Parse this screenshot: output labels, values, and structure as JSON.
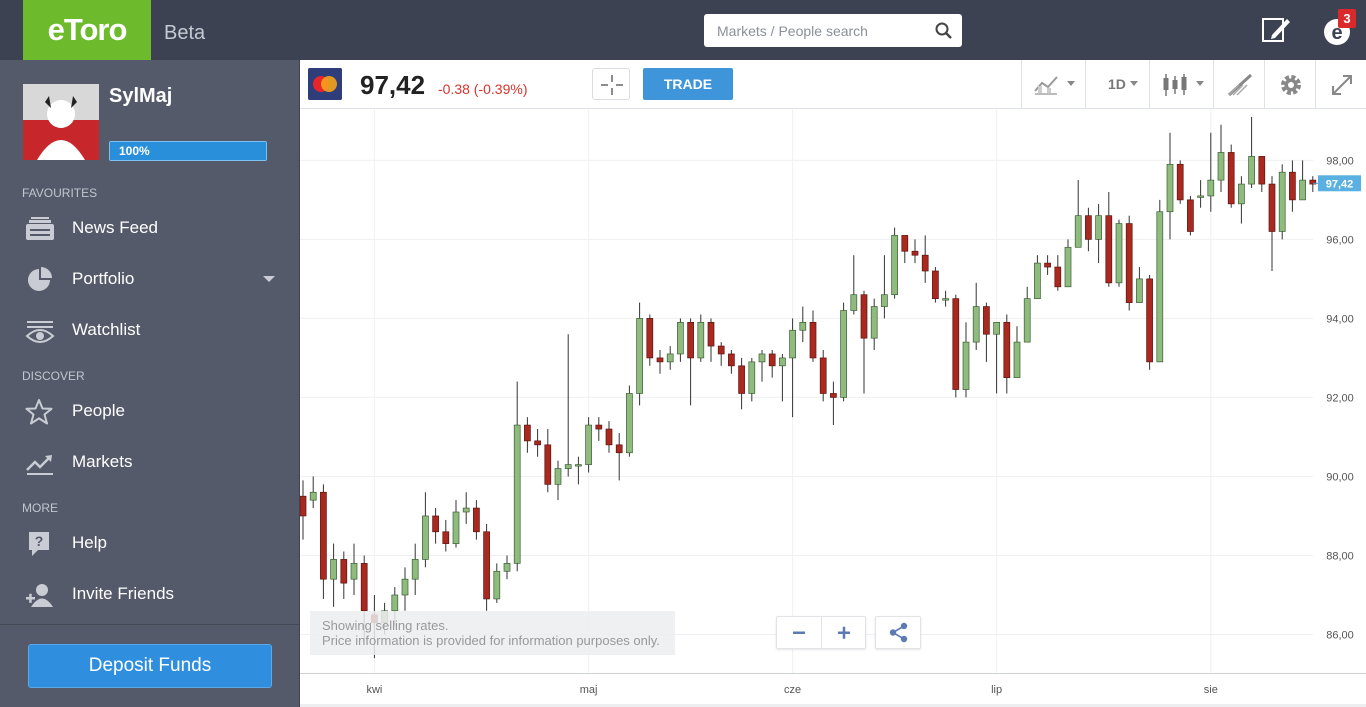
{
  "app": {
    "brand": "eToro",
    "beta_label": "Beta"
  },
  "search": {
    "placeholder": "Markets / People search"
  },
  "notifications": {
    "count": "3"
  },
  "colors": {
    "accent_green": "#6dbb2c",
    "topbar": "#3d4252",
    "sidebar": "#545a69",
    "bull": "#8fbc7e",
    "bear": "#a9281f",
    "blue": "#2f8fde"
  },
  "user": {
    "name": "SylMaj",
    "progress_label": "100%",
    "progress_value": 1.0
  },
  "sidebar": {
    "sections": [
      "Favourites",
      "Discover",
      "More"
    ],
    "items": [
      {
        "label": "News Feed",
        "icon": "news-feed-icon"
      },
      {
        "label": "Portfolio",
        "icon": "pie-chart-icon"
      },
      {
        "label": "Watchlist",
        "icon": "eye-icon"
      },
      {
        "label": "People",
        "icon": "star-icon"
      },
      {
        "label": "Markets",
        "icon": "trend-icon"
      },
      {
        "label": "Help",
        "icon": "help-icon"
      },
      {
        "label": "Invite Friends",
        "icon": "invite-friends-icon"
      }
    ],
    "deposit_label": "Deposit Funds"
  },
  "instrument": {
    "price": "97,42",
    "change": "-0.38 (-0.39%)",
    "trade_label": "TRADE",
    "timeframe": "1D"
  },
  "notice": {
    "line1": "Showing selling rates.",
    "line2": "Price information is provided for information purposes only."
  },
  "chart_data": {
    "type": "candlestick",
    "ylim": [
      85,
      99.3
    ],
    "y_ticks": [
      "86,00",
      "88,00",
      "90,00",
      "92,00",
      "94,00",
      "96,00",
      "98,00"
    ],
    "y_tick_values": [
      86,
      88,
      90,
      92,
      94,
      96,
      98
    ],
    "current_price": 97.42,
    "current_label": "97,42",
    "x_labels": [
      "kwi",
      "maj",
      "cze",
      "lip",
      "sie"
    ],
    "x_label_index": [
      7,
      28,
      48,
      68,
      89
    ],
    "candles": [
      [
        89.5,
        89.0,
        89.9,
        88.4
      ],
      [
        89.4,
        89.6,
        90.0,
        89.2
      ],
      [
        89.6,
        87.4,
        89.8,
        86.9
      ],
      [
        87.4,
        87.9,
        88.3,
        86.7
      ],
      [
        87.9,
        87.3,
        88.1,
        86.9
      ],
      [
        87.4,
        87.8,
        88.3,
        87.0
      ],
      [
        87.8,
        86.6,
        88.0,
        85.8
      ],
      [
        86.5,
        86.3,
        87.0,
        85.4
      ],
      [
        86.3,
        86.6,
        86.8,
        86.0
      ],
      [
        86.6,
        87.0,
        87.2,
        86.2
      ],
      [
        87.0,
        87.4,
        87.7,
        86.6
      ],
      [
        87.4,
        87.9,
        88.3,
        87.0
      ],
      [
        87.9,
        89.0,
        89.6,
        87.7
      ],
      [
        89.0,
        88.6,
        89.2,
        88.3
      ],
      [
        88.6,
        88.3,
        88.9,
        88.1
      ],
      [
        88.3,
        89.1,
        89.4,
        88.2
      ],
      [
        89.1,
        89.2,
        89.6,
        88.8
      ],
      [
        89.2,
        88.6,
        89.4,
        88.4
      ],
      [
        88.6,
        86.9,
        88.8,
        86.6
      ],
      [
        86.9,
        87.6,
        87.8,
        86.8
      ],
      [
        87.6,
        87.8,
        88.0,
        87.4
      ],
      [
        87.8,
        91.3,
        92.4,
        87.6
      ],
      [
        91.3,
        90.9,
        91.5,
        90.6
      ],
      [
        90.9,
        90.8,
        91.2,
        90.5
      ],
      [
        90.8,
        89.8,
        91.2,
        89.6
      ],
      [
        89.8,
        90.2,
        90.4,
        89.4
      ],
      [
        90.2,
        90.3,
        93.6,
        90.0
      ],
      [
        90.3,
        90.3,
        90.5,
        89.8
      ],
      [
        90.3,
        91.3,
        91.5,
        90.1
      ],
      [
        91.3,
        91.2,
        91.5,
        90.9
      ],
      [
        91.2,
        90.8,
        91.4,
        90.6
      ],
      [
        90.8,
        90.6,
        91.1,
        89.9
      ],
      [
        90.6,
        92.1,
        92.3,
        90.5
      ],
      [
        92.1,
        94.0,
        94.4,
        91.8
      ],
      [
        94.0,
        93.0,
        94.1,
        92.8
      ],
      [
        93.0,
        92.9,
        93.2,
        92.6
      ],
      [
        92.9,
        93.1,
        93.3,
        92.7
      ],
      [
        93.1,
        93.9,
        94.0,
        92.9
      ],
      [
        93.9,
        93.0,
        94.0,
        91.8
      ],
      [
        93.0,
        93.9,
        94.1,
        92.9
      ],
      [
        93.9,
        93.3,
        94.0,
        92.9
      ],
      [
        93.3,
        93.1,
        93.4,
        92.8
      ],
      [
        93.1,
        92.8,
        93.2,
        92.6
      ],
      [
        92.8,
        92.1,
        93.0,
        91.7
      ],
      [
        92.1,
        92.9,
        93.0,
        91.9
      ],
      [
        92.9,
        93.1,
        93.2,
        92.4
      ],
      [
        93.1,
        92.8,
        93.2,
        92.5
      ],
      [
        92.8,
        93.0,
        93.1,
        91.9
      ],
      [
        93.0,
        93.7,
        94.0,
        91.5
      ],
      [
        93.7,
        93.9,
        94.3,
        93.4
      ],
      [
        93.9,
        93.0,
        94.2,
        92.9
      ],
      [
        93.0,
        92.1,
        93.2,
        91.9
      ],
      [
        92.1,
        92.0,
        92.4,
        91.3
      ],
      [
        92.0,
        94.2,
        94.4,
        91.9
      ],
      [
        94.2,
        94.6,
        95.6,
        94.1
      ],
      [
        94.6,
        93.5,
        94.7,
        92.1
      ],
      [
        93.5,
        94.3,
        94.5,
        93.2
      ],
      [
        94.3,
        94.6,
        95.6,
        94.0
      ],
      [
        94.6,
        96.1,
        96.3,
        94.5
      ],
      [
        96.1,
        95.7,
        96.1,
        95.4
      ],
      [
        95.7,
        95.6,
        96.0,
        95.4
      ],
      [
        95.6,
        95.2,
        96.1,
        94.9
      ],
      [
        95.2,
        94.5,
        95.3,
        94.4
      ],
      [
        94.5,
        94.5,
        94.7,
        94.3
      ],
      [
        94.5,
        92.2,
        94.6,
        92.0
      ],
      [
        92.2,
        93.4,
        93.9,
        92.0
      ],
      [
        93.4,
        94.3,
        94.9,
        93.2
      ],
      [
        94.3,
        93.6,
        94.4,
        92.9
      ],
      [
        93.6,
        93.9,
        93.9,
        92.1
      ],
      [
        93.9,
        92.5,
        94.1,
        92.1
      ],
      [
        92.5,
        93.4,
        93.8,
        93.1
      ],
      [
        93.4,
        94.5,
        94.8,
        94.0
      ],
      [
        94.5,
        95.4,
        95.6,
        95.1
      ],
      [
        95.4,
        95.3,
        95.6,
        95.1
      ],
      [
        95.3,
        94.8,
        95.6,
        94.7
      ],
      [
        94.8,
        95.8,
        96.0,
        95.6
      ],
      [
        95.8,
        96.6,
        97.5,
        96.6
      ],
      [
        96.6,
        96.0,
        96.8,
        95.7
      ],
      [
        96.0,
        96.6,
        96.9,
        95.4
      ],
      [
        96.6,
        94.9,
        97.2,
        94.8
      ],
      [
        94.9,
        96.4,
        96.5,
        94.8
      ],
      [
        96.4,
        94.4,
        96.6,
        94.2
      ],
      [
        94.4,
        95.0,
        95.3,
        94.7
      ],
      [
        95.0,
        92.9,
        95.1,
        92.7
      ],
      [
        92.9,
        96.7,
        97.0,
        96.6
      ],
      [
        96.7,
        97.9,
        98.7,
        96.0
      ],
      [
        97.9,
        97.0,
        98.0,
        96.9
      ],
      [
        97.0,
        96.2,
        97.1,
        96.1
      ],
      [
        97.1,
        97.1,
        97.5,
        96.8
      ],
      [
        97.1,
        97.5,
        98.7,
        96.7
      ],
      [
        97.5,
        98.2,
        98.9,
        97.2
      ],
      [
        98.2,
        96.9,
        98.4,
        96.8
      ],
      [
        96.9,
        97.4,
        97.6,
        96.4
      ],
      [
        97.4,
        98.1,
        99.1,
        97.3
      ],
      [
        98.1,
        97.4,
        98.1,
        97.2
      ],
      [
        97.4,
        96.2,
        97.6,
        95.2
      ],
      [
        96.2,
        97.7,
        97.9,
        96.0
      ],
      [
        97.7,
        97.0,
        98.0,
        96.7
      ],
      [
        97.0,
        97.5,
        98.0,
        97.0
      ],
      [
        97.5,
        97.4,
        97.6,
        97.2
      ]
    ]
  }
}
